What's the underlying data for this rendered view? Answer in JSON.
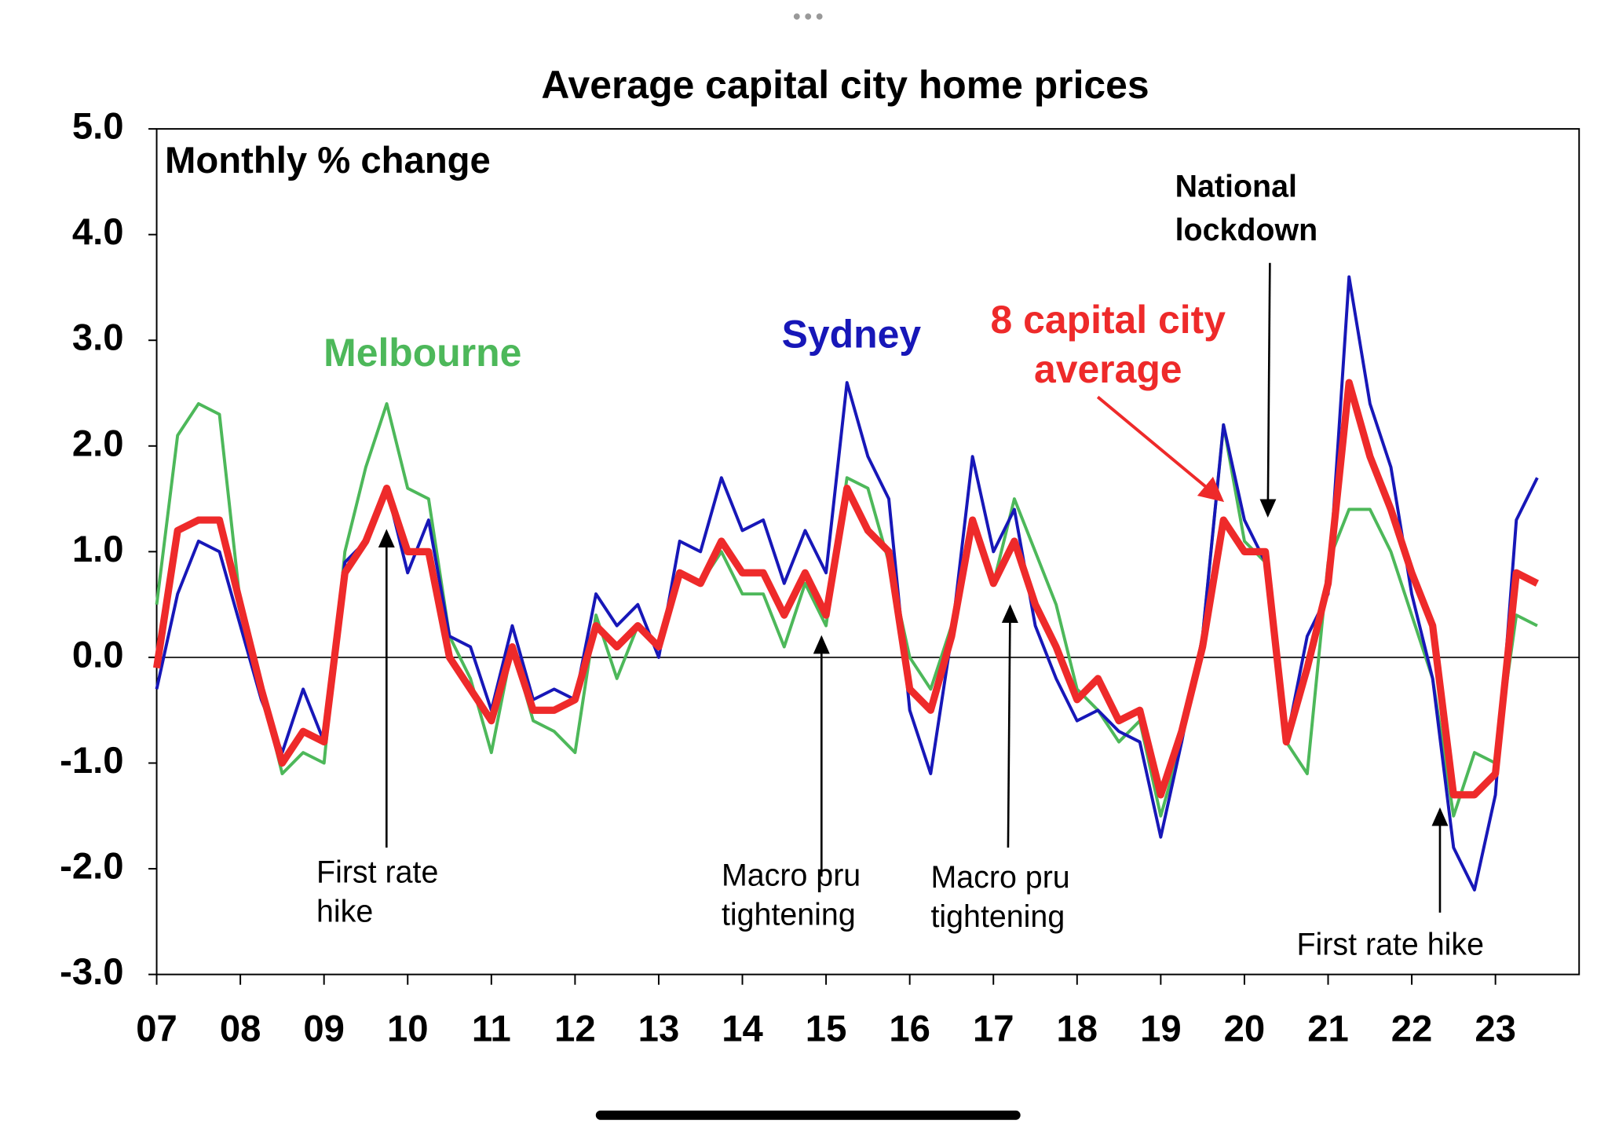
{
  "chart_data": {
    "type": "line",
    "title": "Average capital city home prices",
    "ylabel": "Monthly % change",
    "xlim": [
      2007,
      2024
    ],
    "ylim": [
      -3,
      5
    ],
    "xticks": [
      {
        "value": 2007,
        "label": "07"
      },
      {
        "value": 2008,
        "label": "08"
      },
      {
        "value": 2009,
        "label": "09"
      },
      {
        "value": 2010,
        "label": "10"
      },
      {
        "value": 2011,
        "label": "11"
      },
      {
        "value": 2012,
        "label": "12"
      },
      {
        "value": 2013,
        "label": "13"
      },
      {
        "value": 2014,
        "label": "14"
      },
      {
        "value": 2015,
        "label": "15"
      },
      {
        "value": 2016,
        "label": "16"
      },
      {
        "value": 2017,
        "label": "17"
      },
      {
        "value": 2018,
        "label": "18"
      },
      {
        "value": 2019,
        "label": "19"
      },
      {
        "value": 2020,
        "label": "20"
      },
      {
        "value": 2021,
        "label": "21"
      },
      {
        "value": 2022,
        "label": "22"
      },
      {
        "value": 2023,
        "label": "23"
      }
    ],
    "yticks": [
      {
        "value": 5,
        "label": "5.0"
      },
      {
        "value": 4,
        "label": "4.0"
      },
      {
        "value": 3,
        "label": "3.0"
      },
      {
        "value": 2,
        "label": "2.0"
      },
      {
        "value": 1,
        "label": "1.0"
      },
      {
        "value": 0,
        "label": "0.0"
      },
      {
        "value": -1,
        "label": "-1.0"
      },
      {
        "value": -2,
        "label": "-2.0"
      },
      {
        "value": -3,
        "label": "-3.0"
      }
    ],
    "grid": false,
    "x": [
      2007,
      2007.25,
      2007.5,
      2007.75,
      2008,
      2008.25,
      2008.5,
      2008.75,
      2009,
      2009.25,
      2009.5,
      2009.75,
      2010,
      2010.25,
      2010.5,
      2010.75,
      2011,
      2011.25,
      2011.5,
      2011.75,
      2012,
      2012.25,
      2012.5,
      2012.75,
      2013,
      2013.25,
      2013.5,
      2013.75,
      2014,
      2014.25,
      2014.5,
      2014.75,
      2015,
      2015.25,
      2015.5,
      2015.75,
      2016,
      2016.25,
      2016.5,
      2016.75,
      2017,
      2017.25,
      2017.5,
      2017.75,
      2018,
      2018.25,
      2018.5,
      2018.75,
      2019,
      2019.25,
      2019.5,
      2019.75,
      2020,
      2020.25,
      2020.5,
      2020.75,
      2021,
      2021.25,
      2021.5,
      2021.75,
      2022,
      2022.25,
      2022.5,
      2022.75,
      2023,
      2023.25,
      2023.5
    ],
    "series": [
      {
        "name": "Melbourne",
        "color": "#4db85a",
        "width": 3,
        "values": [
          0.5,
          2.1,
          2.4,
          2.3,
          0.5,
          -0.3,
          -1.1,
          -0.9,
          -1.0,
          1.0,
          1.8,
          2.4,
          1.6,
          1.5,
          0.2,
          -0.2,
          -0.9,
          0.1,
          -0.6,
          -0.7,
          -0.9,
          0.4,
          -0.2,
          0.3,
          0.1,
          0.8,
          0.7,
          1.0,
          0.6,
          0.6,
          0.1,
          0.7,
          0.3,
          1.7,
          1.6,
          0.9,
          0.0,
          -0.3,
          0.3,
          1.3,
          0.7,
          1.5,
          1.0,
          0.5,
          -0.3,
          -0.5,
          -0.8,
          -0.6,
          -1.5,
          -0.8,
          0.2,
          2.2,
          1.1,
          0.9,
          -0.8,
          -1.1,
          0.9,
          1.4,
          1.4,
          1.0,
          0.4,
          -0.2,
          -1.5,
          -0.9,
          -1.0,
          0.4,
          0.3
        ]
      },
      {
        "name": "Sydney",
        "color": "#1717b8",
        "width": 3,
        "values": [
          -0.3,
          0.6,
          1.1,
          1.0,
          0.3,
          -0.4,
          -0.9,
          -0.3,
          -0.8,
          0.9,
          1.1,
          1.6,
          0.8,
          1.3,
          0.2,
          0.1,
          -0.5,
          0.3,
          -0.4,
          -0.3,
          -0.4,
          0.6,
          0.3,
          0.5,
          0.0,
          1.1,
          1.0,
          1.7,
          1.2,
          1.3,
          0.7,
          1.2,
          0.8,
          2.6,
          1.9,
          1.5,
          -0.5,
          -1.1,
          0.2,
          1.9,
          1.0,
          1.4,
          0.3,
          -0.2,
          -0.6,
          -0.5,
          -0.7,
          -0.8,
          -1.7,
          -0.8,
          0.2,
          2.2,
          1.3,
          0.9,
          -0.8,
          0.2,
          0.6,
          3.6,
          2.4,
          1.8,
          0.6,
          -0.2,
          -1.8,
          -2.2,
          -1.3,
          1.3,
          1.7
        ]
      },
      {
        "name": "8 capital city average",
        "label_lines": [
          "8 capital city",
          "average"
        ],
        "color": "#ee2a2a",
        "width": 7,
        "values": [
          -0.1,
          1.2,
          1.3,
          1.3,
          0.5,
          -0.3,
          -1.0,
          -0.7,
          -0.8,
          0.8,
          1.1,
          1.6,
          1.0,
          1.0,
          0.0,
          -0.3,
          -0.6,
          0.1,
          -0.5,
          -0.5,
          -0.4,
          0.3,
          0.1,
          0.3,
          0.1,
          0.8,
          0.7,
          1.1,
          0.8,
          0.8,
          0.4,
          0.8,
          0.4,
          1.6,
          1.2,
          1.0,
          -0.3,
          -0.5,
          0.2,
          1.3,
          0.7,
          1.1,
          0.5,
          0.1,
          -0.4,
          -0.2,
          -0.6,
          -0.5,
          -1.3,
          -0.7,
          0.1,
          1.3,
          1.0,
          1.0,
          -0.8,
          -0.1,
          0.7,
          2.6,
          1.9,
          1.4,
          0.8,
          0.3,
          -1.3,
          -1.3,
          -1.1,
          0.8,
          0.7
        ]
      }
    ],
    "annotations": [
      {
        "lines": [
          "First rate",
          "hike"
        ]
      },
      {
        "lines": [
          "Macro pru",
          "tightening"
        ]
      },
      {
        "lines": [
          "Macro pru",
          "tightening"
        ]
      },
      {
        "lines": [
          "National",
          "lockdown"
        ]
      },
      {
        "lines": [
          "First rate hike"
        ]
      }
    ]
  }
}
